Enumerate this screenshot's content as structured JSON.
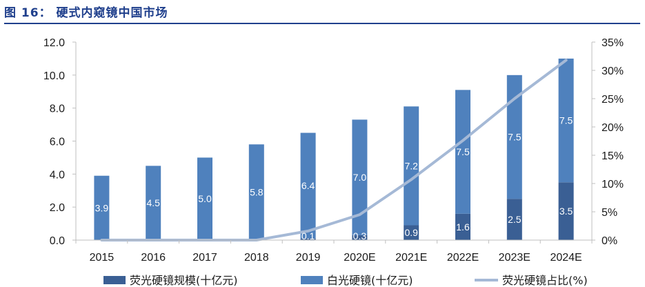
{
  "figure_label": "图 16：",
  "figure_title": "硬式内窥镜中国市场",
  "chart_data": {
    "type": "bar",
    "stacked": true,
    "categories": [
      "2015",
      "2016",
      "2017",
      "2018",
      "2019",
      "2020E",
      "2021E",
      "2022E",
      "2023E",
      "2024E"
    ],
    "series": [
      {
        "name": "荧光硬镜规模(十亿元)",
        "type": "bar",
        "axis": "left",
        "color": "#3a5f94",
        "values": [
          0,
          0,
          0,
          0,
          0.1,
          0.3,
          0.9,
          1.6,
          2.5,
          3.5
        ],
        "labels": [
          "",
          "",
          "",
          "",
          "0.1",
          "0.3",
          "0.9",
          "1.6",
          "2.5",
          "3.5"
        ]
      },
      {
        "name": "白光硬镜(十亿元)",
        "type": "bar",
        "axis": "left",
        "color": "#4f81bd",
        "values": [
          3.9,
          4.5,
          5.0,
          5.8,
          6.4,
          7.0,
          7.2,
          7.5,
          7.5,
          7.5
        ],
        "labels": [
          "3.9",
          "4.5",
          "5.0",
          "5.8",
          "6.4",
          "7.0",
          "7.2",
          "7.5",
          "7.5",
          "7.5"
        ]
      },
      {
        "name": "荧光硬镜占比(%)",
        "type": "line",
        "axis": "right",
        "color": "#a5b9d6",
        "values": [
          0,
          0,
          0,
          0,
          1.6,
          4.5,
          10.7,
          17.6,
          25.0,
          31.8
        ]
      }
    ],
    "left_axis": {
      "min": 0,
      "max": 12,
      "ticks": [
        "0.0",
        "2.0",
        "4.0",
        "6.0",
        "8.0",
        "10.0",
        "12.0"
      ]
    },
    "right_axis": {
      "min": 0,
      "max": 35,
      "ticks": [
        "0%",
        "5%",
        "10%",
        "15%",
        "20%",
        "25%",
        "30%",
        "35%"
      ]
    },
    "grid": false,
    "legend": "bottom"
  }
}
